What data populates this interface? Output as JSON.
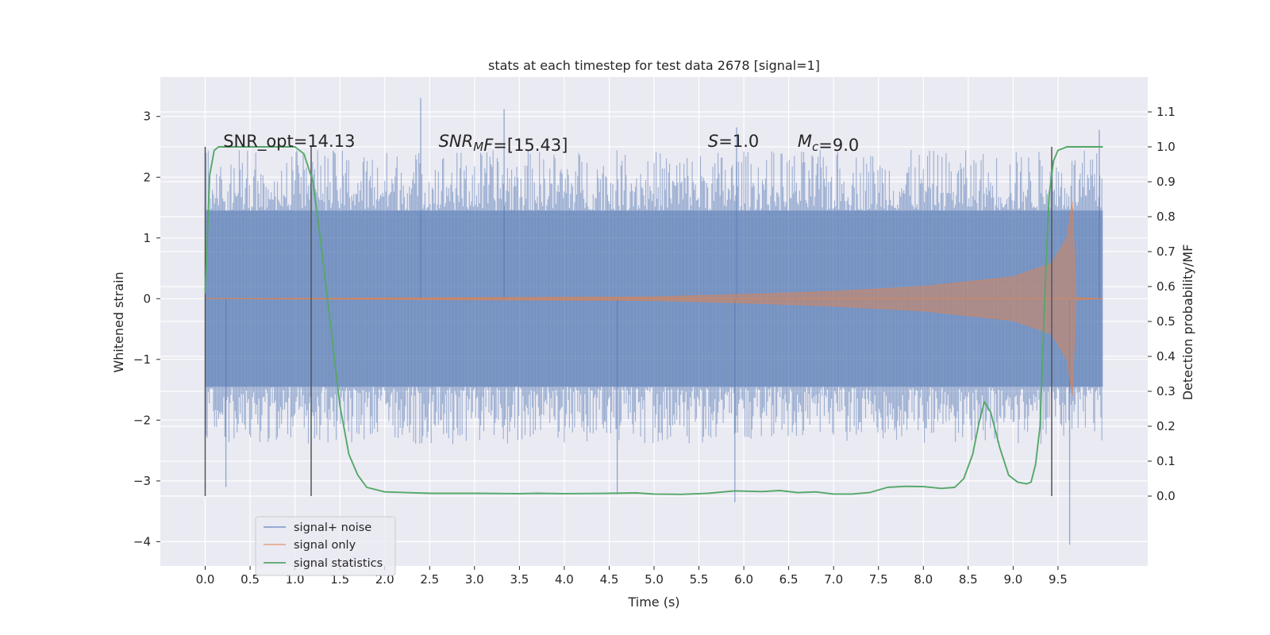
{
  "chart_data": {
    "type": "line",
    "title": "stats at each timestep for test data 2678 [signal=1]",
    "xlabel": "Time (s)",
    "ylabel": "Whitened strain",
    "ylabel_right": "Detection probability/MF",
    "xlim": [
      -0.5,
      10.5
    ],
    "ylim": [
      -4.4,
      3.65
    ],
    "ylim_right": [
      -0.2,
      1.2
    ],
    "x_ticks": [
      0.0,
      0.5,
      1.0,
      1.5,
      2.0,
      2.5,
      3.0,
      3.5,
      4.0,
      4.5,
      5.0,
      5.5,
      6.0,
      6.5,
      7.0,
      7.5,
      8.0,
      8.5,
      9.0,
      9.5
    ],
    "x_tick_labels": [
      "0.0",
      "0.5",
      "1.0",
      "1.5",
      "2.0",
      "2.5",
      "3.0",
      "3.5",
      "4.0",
      "4.5",
      "5.0",
      "5.5",
      "6.0",
      "6.5",
      "7.0",
      "7.5",
      "8.0",
      "8.5",
      "9.0",
      "9.5"
    ],
    "y_ticks": [
      -4,
      -3,
      -2,
      -1,
      0,
      1,
      2,
      3
    ],
    "y_tick_labels": [
      "−4",
      "−3",
      "−2",
      "−1",
      "0",
      "1",
      "2",
      "3"
    ],
    "y_right_ticks": [
      0.0,
      0.1,
      0.2,
      0.3,
      0.4,
      0.5,
      0.6,
      0.7,
      0.8,
      0.9,
      1.0,
      1.1
    ],
    "y_right_tick_labels": [
      "0.0",
      "0.1",
      "0.2",
      "0.3",
      "0.4",
      "0.5",
      "0.6",
      "0.7",
      "0.8",
      "0.9",
      "1.0",
      "1.1"
    ],
    "grid": true,
    "legend_position": "lower-left",
    "annotations": [
      {
        "parts": [
          {
            "t": "SNR_opt=14.13",
            "style": "normal"
          }
        ],
        "x": 0.2,
        "y": 2.5
      },
      {
        "parts": [
          {
            "t": "SNR",
            "style": "italic"
          },
          {
            "t": "M",
            "style": "italic-sub"
          },
          {
            "t": "F",
            "style": "italic"
          },
          {
            "t": "=[15.43]",
            "style": "normal"
          }
        ],
        "x": 2.6,
        "y": 2.5
      },
      {
        "parts": [
          {
            "t": "S",
            "style": "italic"
          },
          {
            "t": "=1.0",
            "style": "normal"
          }
        ],
        "x": 5.6,
        "y": 2.5
      },
      {
        "parts": [
          {
            "t": "M",
            "style": "italic"
          },
          {
            "t": "c",
            "style": "italic-sub"
          },
          {
            "t": "=9.0",
            "style": "normal"
          }
        ],
        "x": 6.6,
        "y": 2.5
      }
    ],
    "vlines": [
      0.0,
      1.18,
      9.43
    ],
    "vline_range": [
      -3.25,
      2.5
    ],
    "series": [
      {
        "name": "signal+ noise",
        "color": "#4c72b0",
        "kind": "noise_band",
        "x_range": [
          0.0,
          10.0
        ],
        "dense_envelope": [
          -1.45,
          1.45
        ],
        "extreme_envelope": [
          -2.4,
          2.45
        ],
        "spikes": [
          [
            2.4,
            3.3
          ],
          [
            3.33,
            3.12
          ],
          [
            5.92,
            2.82
          ],
          [
            9.96,
            2.78
          ],
          [
            5.9,
            -3.35
          ],
          [
            9.63,
            -4.05
          ],
          [
            0.23,
            -3.1
          ],
          [
            4.59,
            -3.22
          ]
        ]
      },
      {
        "name": "signal only",
        "color": "#dd8452",
        "kind": "chirp",
        "x_range": [
          0.0,
          10.0
        ],
        "amplitude_points": [
          [
            0.0,
            0.0
          ],
          [
            5.0,
            0.03
          ],
          [
            6.0,
            0.07
          ],
          [
            7.0,
            0.12
          ],
          [
            8.0,
            0.2
          ],
          [
            9.0,
            0.36
          ],
          [
            9.43,
            0.58
          ],
          [
            9.6,
            1.0
          ],
          [
            9.66,
            1.6
          ],
          [
            9.7,
            0.02
          ],
          [
            10.0,
            0.0
          ]
        ]
      },
      {
        "name": "signal statistics",
        "color": "#55a868",
        "kind": "line",
        "axis": "right",
        "x": [
          0.0,
          0.05,
          0.1,
          0.15,
          0.25,
          0.5,
          0.8,
          1.0,
          1.1,
          1.2,
          1.3,
          1.4,
          1.5,
          1.6,
          1.7,
          1.8,
          2.0,
          2.5,
          3.0,
          3.5,
          3.7,
          4.0,
          4.5,
          4.8,
          5.0,
          5.3,
          5.6,
          5.9,
          6.2,
          6.4,
          6.6,
          6.8,
          7.0,
          7.2,
          7.4,
          7.6,
          7.8,
          8.0,
          8.2,
          8.35,
          8.45,
          8.55,
          8.62,
          8.68,
          8.75,
          8.85,
          8.95,
          9.05,
          9.15,
          9.2,
          9.25,
          9.3,
          9.35,
          9.4,
          9.45,
          9.5,
          9.6,
          9.8,
          10.0
        ],
        "y": [
          0.58,
          0.92,
          0.99,
          1.0,
          1.0,
          1.0,
          1.0,
          1.0,
          0.98,
          0.9,
          0.7,
          0.48,
          0.26,
          0.12,
          0.06,
          0.025,
          0.012,
          0.008,
          0.008,
          0.007,
          0.008,
          0.007,
          0.008,
          0.009,
          0.006,
          0.005,
          0.008,
          0.015,
          0.013,
          0.016,
          0.01,
          0.012,
          0.006,
          0.006,
          0.01,
          0.025,
          0.028,
          0.027,
          0.022,
          0.025,
          0.05,
          0.12,
          0.21,
          0.27,
          0.24,
          0.14,
          0.06,
          0.04,
          0.035,
          0.04,
          0.09,
          0.2,
          0.55,
          0.86,
          0.96,
          0.99,
          1.0,
          1.0,
          1.0
        ]
      }
    ]
  }
}
